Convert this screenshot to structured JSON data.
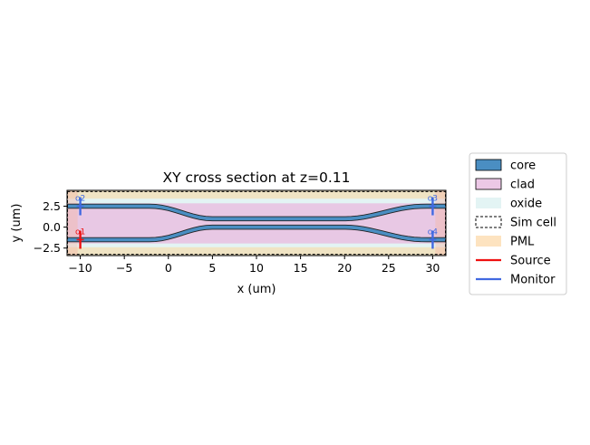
{
  "chart_data": {
    "type": "diagram",
    "title": "XY cross section at z=0.11",
    "xlabel": "x (um)",
    "ylabel": "y (um)",
    "xlim": [
      -11.5,
      31.5
    ],
    "ylim": [
      -3.4,
      4.4
    ],
    "xticks": [
      -10,
      -5,
      0,
      5,
      10,
      15,
      20,
      25,
      30
    ],
    "xtick_labels": [
      "−10",
      "−5",
      "0",
      "5",
      "10",
      "15",
      "20",
      "25",
      "30"
    ],
    "yticks": [
      -2.5,
      0.0,
      2.5
    ],
    "ytick_labels": [
      "−2.5",
      "0.0",
      "2.5"
    ],
    "sim_cell": {
      "x": [
        -11.5,
        31.5
      ],
      "y": [
        -3.25,
        4.25
      ]
    },
    "pml_thickness": {
      "x": 1.2,
      "y": 1.0
    },
    "clad": {
      "x": [
        -11.5,
        31.5
      ],
      "y": [
        -1.95,
        2.85
      ]
    },
    "waveguides": [
      {
        "name": "upper",
        "x_in": -11.5,
        "x_out": 31.5,
        "y_outer": 2.5,
        "y_inner": 1.0,
        "bend_in": [
          -2,
          5
        ],
        "bend_out": 20,
        "bend_out_end": 29,
        "width": 0.5
      },
      {
        "name": "lower",
        "x_in": -11.5,
        "x_out": 31.5,
        "y_outer": -1.5,
        "y_inner": 0.0,
        "bend_in": [
          -2,
          5
        ],
        "bend_out": 20,
        "bend_out_end": 29,
        "width": 0.5
      }
    ],
    "ports": [
      {
        "name": "o1",
        "x": -10,
        "y": -1.5,
        "kind": "source"
      },
      {
        "name": "o2",
        "x": -10,
        "y": 2.5,
        "kind": "monitor"
      },
      {
        "name": "o3",
        "x": 30,
        "y": 2.5,
        "kind": "monitor"
      },
      {
        "name": "o4",
        "x": 30,
        "y": -1.5,
        "kind": "monitor"
      }
    ],
    "legend": {
      "placement": "outside-right",
      "entries": [
        {
          "label": "core",
          "kind": "patch",
          "fill": "#4a8ec2",
          "edge": "#000000"
        },
        {
          "label": "clad",
          "kind": "patch",
          "fill": "#ecc8e6",
          "edge": "#000000"
        },
        {
          "label": "oxide",
          "kind": "patch",
          "fill": "#e3f4f4",
          "edge": "none"
        },
        {
          "label": "Sim cell",
          "kind": "dashed",
          "fill": "none",
          "edge": "#000000"
        },
        {
          "label": "PML",
          "kind": "patch",
          "fill": "#fde3c0",
          "edge": "none"
        },
        {
          "label": "Source",
          "kind": "line",
          "edge": "#ee1111"
        },
        {
          "label": "Monitor",
          "kind": "line",
          "edge": "#4169e1"
        }
      ]
    },
    "colors": {
      "core": "#4a8ec2",
      "clad": "#e8c8e4",
      "oxide": "#e3f4f4",
      "pml": "#f0e4c4",
      "source": "#ee1111",
      "monitor": "#4169e1"
    }
  }
}
